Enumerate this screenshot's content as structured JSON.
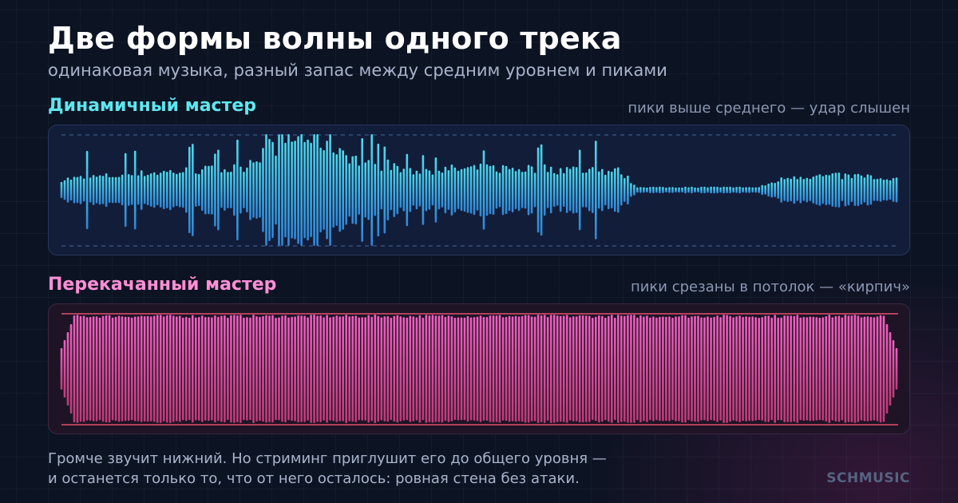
{
  "header": {
    "title": "Две формы волны одного трека",
    "subtitle": "одинаковая музыка, разный запас между средним уровнем и пиками"
  },
  "dynamic_master": {
    "label": "Динамичный мастер",
    "note": "пики выше среднего — удар слышен",
    "color": "#5ee6ee",
    "bar_color_top": "#4fd9ec",
    "bar_color_bottom": "#2f86d6"
  },
  "loud_master": {
    "label": "Перекачанный мастер",
    "note": "пики срезаны в потолок — «кирпич»",
    "color": "#ff8fd6",
    "bar_color_top": "#f060c0",
    "bar_color_bottom": "#c03a7a",
    "ceiling_color": "#e0506e"
  },
  "footer": {
    "line1": "Громче звучит нижний. Но стриминг приглушит его до общего уровня —",
    "line2": "и останется только то, что от него осталось: ровная стена без атаки."
  },
  "brand": "SCHMUSIC"
}
